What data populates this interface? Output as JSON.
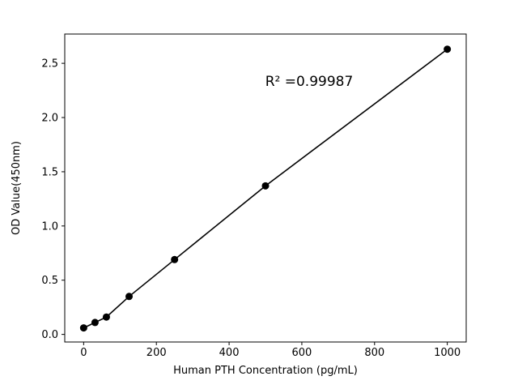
{
  "figure": {
    "background": "#ffffff"
  },
  "chart_data": {
    "type": "scatter",
    "title": "",
    "xlabel": "Human PTH Concentration (pg/mL)",
    "ylabel": "OD Value(450nm)",
    "x": [
      0,
      31.25,
      62.5,
      125,
      250,
      500,
      1000
    ],
    "y": [
      0.06,
      0.11,
      0.16,
      0.35,
      0.69,
      1.37,
      2.63
    ],
    "xlim": [
      -52,
      1052
    ],
    "ylim": [
      -0.07,
      2.77
    ],
    "xticks": {
      "values": [
        0,
        200,
        400,
        600,
        800,
        1000
      ],
      "labels": [
        "0",
        "200",
        "400",
        "600",
        "800",
        "1000"
      ]
    },
    "yticks": {
      "values": [
        0.0,
        0.5,
        1.0,
        1.5,
        2.0,
        2.5
      ],
      "labels": [
        "0.0",
        "0.5",
        "1.0",
        "1.5",
        "2.0",
        "2.5"
      ]
    },
    "annotation": {
      "text": "R² =0.99987"
    },
    "line_color": "#000000",
    "marker_color": "#000000",
    "axis_color": "#000000",
    "grid": false,
    "legend": null
  }
}
